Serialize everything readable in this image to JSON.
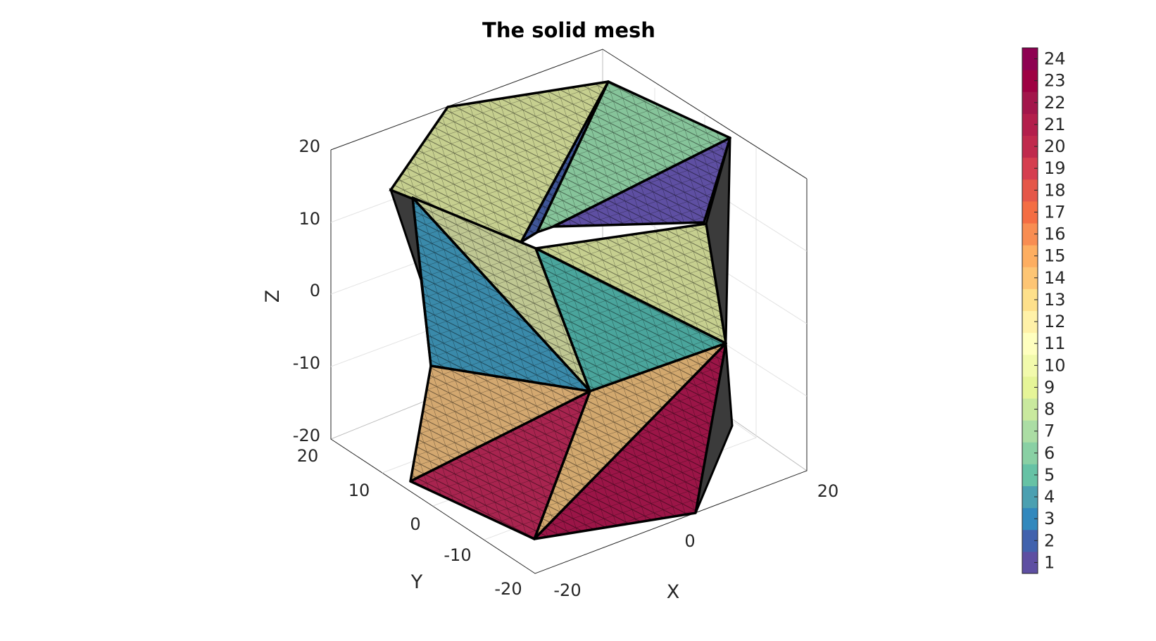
{
  "chart_data": {
    "type": "other",
    "title": "The solid mesh",
    "xlabel": "X",
    "ylabel": "Y",
    "zlabel": "Z",
    "xlim": [
      -20,
      20
    ],
    "ylim": [
      -20,
      20
    ],
    "zlim": [
      -20,
      20
    ],
    "x_ticks": [
      "-20",
      "0",
      "20"
    ],
    "y_ticks": [
      "-20",
      "-10",
      "0",
      "10",
      "20"
    ],
    "z_ticks": [
      "-20",
      "-10",
      "0",
      "10",
      "20"
    ],
    "grid": true,
    "colorbar": {
      "position": "right",
      "min": 1,
      "max": 24,
      "tick_labels": [
        "1",
        "2",
        "3",
        "4",
        "5",
        "6",
        "7",
        "8",
        "9",
        "10",
        "11",
        "12",
        "13",
        "14",
        "15",
        "16",
        "17",
        "18",
        "19",
        "20",
        "21",
        "22",
        "23",
        "24"
      ],
      "colors": [
        "#5e4fa2",
        "#4162ad",
        "#3288bd",
        "#4ba0b1",
        "#66c2a5",
        "#89d0a4",
        "#abdda4",
        "#c9e99e",
        "#e6f598",
        "#f2faac",
        "#ffffbf",
        "#fff1a8",
        "#fee08b",
        "#fdc574",
        "#fdae61",
        "#f88d52",
        "#f46d43",
        "#e55749",
        "#d53e4f",
        "#c02a4d",
        "#b31f4c",
        "#a3164b",
        "#9e0142",
        "#8e0152"
      ]
    },
    "faces": [
      {
        "region": 1,
        "color": "#5e4fa2"
      },
      {
        "region": 2,
        "color": "#3f5596"
      },
      {
        "region": 4,
        "color": "#3a8aaa"
      },
      {
        "region": 5,
        "color": "#4aa59c"
      },
      {
        "region": 7,
        "color": "#86c49a"
      },
      {
        "region": 8,
        "color": "#a4d59a"
      },
      {
        "region": 11,
        "color": "#c6cf8f"
      },
      {
        "region": 12,
        "color": "#bfc792"
      },
      {
        "region": 16,
        "color": "#d2a86e"
      },
      {
        "region": 17,
        "color": "#d3a870"
      },
      {
        "region": 23,
        "color": "#a8244f"
      },
      {
        "region": 24,
        "color": "#9b1547"
      }
    ]
  }
}
